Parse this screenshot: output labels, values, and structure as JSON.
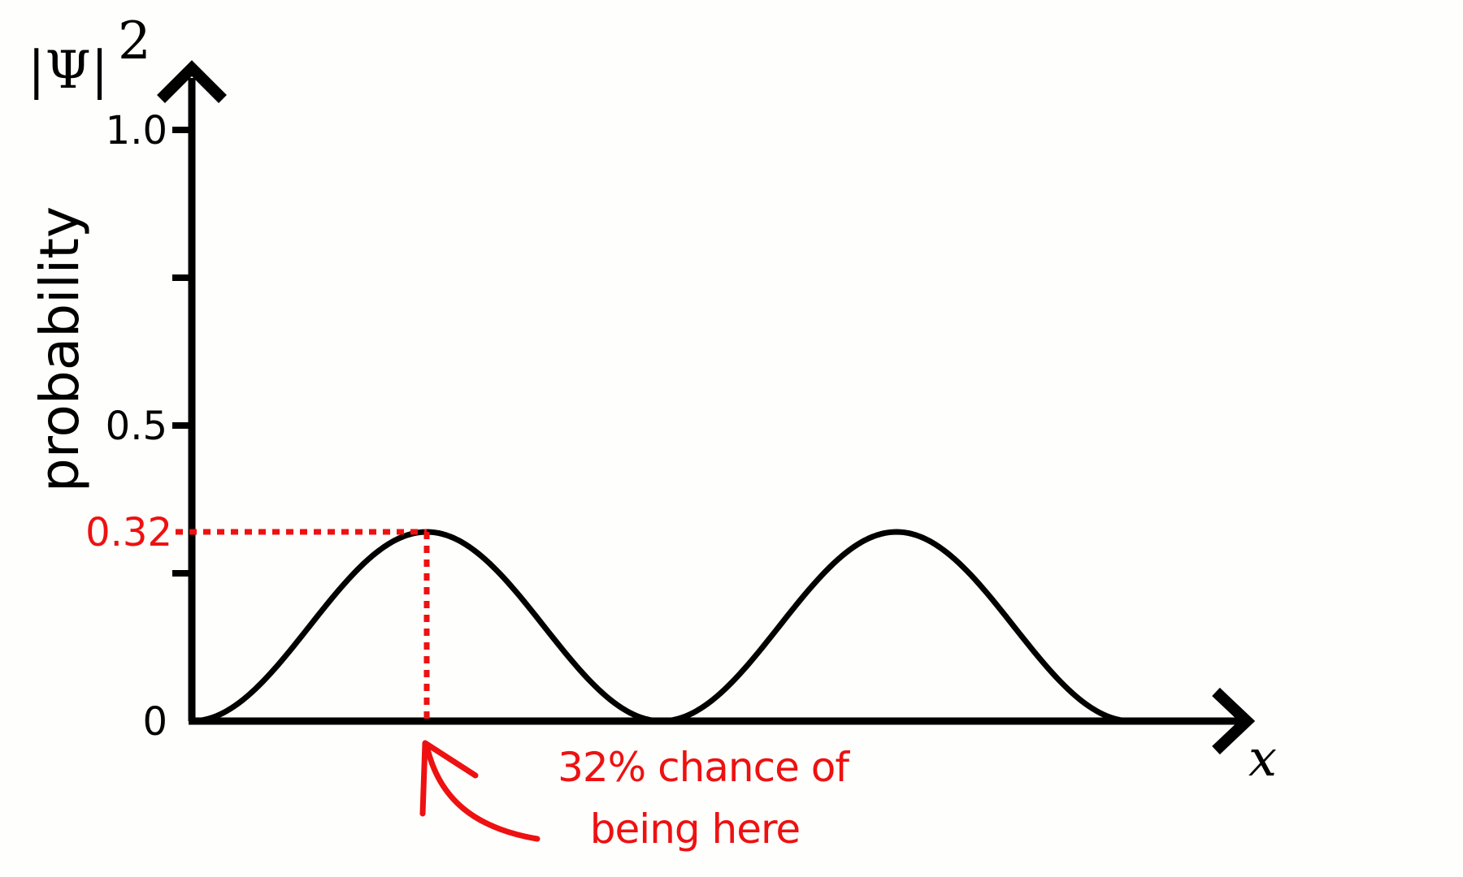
{
  "chart_data": {
    "type": "line",
    "ylabel": "probability",
    "xlabel": "x",
    "y_symbol": {
      "base": "|Ψ|",
      "superscript": "2"
    },
    "ylim": [
      0,
      1.0
    ],
    "yticks": [
      {
        "value": 0,
        "label": "0"
      },
      {
        "value": 0.25,
        "label": ""
      },
      {
        "value": 0.5,
        "label": "0.5"
      },
      {
        "value": 0.75,
        "label": ""
      },
      {
        "value": 1.0,
        "label": "1.0"
      }
    ],
    "xlim": [
      0,
      1
    ],
    "series": [
      {
        "function": "0.32 * sin^2(2*pi*x)",
        "amplitude": 0.32,
        "x": [
          0,
          0.0625,
          0.125,
          0.1875,
          0.25,
          0.3125,
          0.375,
          0.4375,
          0.5,
          0.5625,
          0.625,
          0.6875,
          0.75,
          0.8125,
          0.875,
          0.9375,
          1.0
        ],
        "y": [
          0,
          0.047,
          0.16,
          0.273,
          0.32,
          0.273,
          0.16,
          0.047,
          0,
          0.047,
          0.16,
          0.273,
          0.32,
          0.273,
          0.16,
          0.047,
          0
        ]
      }
    ],
    "annotation": {
      "x": 0.25,
      "y": 0.32,
      "label": "0.32",
      "note_lines": [
        "32% chance of",
        "being here"
      ]
    },
    "grid": false,
    "legend": "none"
  },
  "colors": {
    "axis": "#000000",
    "curve": "#000000",
    "annotation": "#ee1111",
    "background": "#fefefc"
  }
}
